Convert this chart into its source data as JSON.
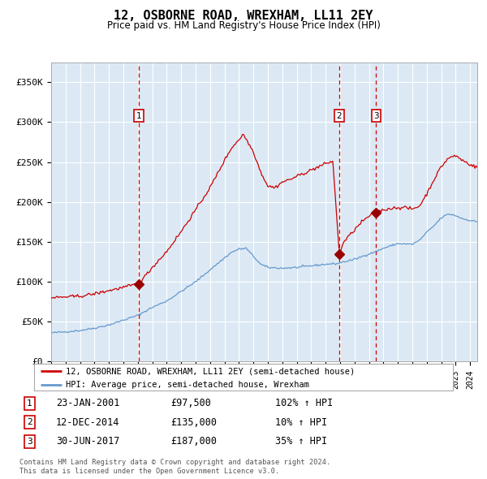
{
  "title": "12, OSBORNE ROAD, WREXHAM, LL11 2EY",
  "subtitle": "Price paid vs. HM Land Registry's House Price Index (HPI)",
  "fig_bg_color": "#ffffff",
  "plot_bg_color": "#dce9f5",
  "red_line_color": "#cc0000",
  "blue_line_color": "#6699cc",
  "marker_color": "#990000",
  "dashed_line_color": "#cc0000",
  "ylabel_values": [
    "£0",
    "£50K",
    "£100K",
    "£150K",
    "£200K",
    "£250K",
    "£300K",
    "£350K"
  ],
  "ylim": [
    0,
    375000
  ],
  "xlim_start": 1995.0,
  "xlim_end": 2024.5,
  "legend_label_red": "12, OSBORNE ROAD, WREXHAM, LL11 2EY (semi-detached house)",
  "legend_label_blue": "HPI: Average price, semi-detached house, Wrexham",
  "sale1_date": "23-JAN-2001",
  "sale1_price": 97500,
  "sale1_pct": "102%",
  "sale1_label": "1",
  "sale1_x": 2001.06,
  "sale2_date": "12-DEC-2014",
  "sale2_price": 135000,
  "sale2_label": "2",
  "sale2_pct": "10%",
  "sale2_x": 2014.95,
  "sale3_date": "30-JUN-2017",
  "sale3_price": 187000,
  "sale3_label": "3",
  "sale3_pct": "35%",
  "sale3_x": 2017.5,
  "footer_line1": "Contains HM Land Registry data © Crown copyright and database right 2024.",
  "footer_line2": "This data is licensed under the Open Government Licence v3.0."
}
